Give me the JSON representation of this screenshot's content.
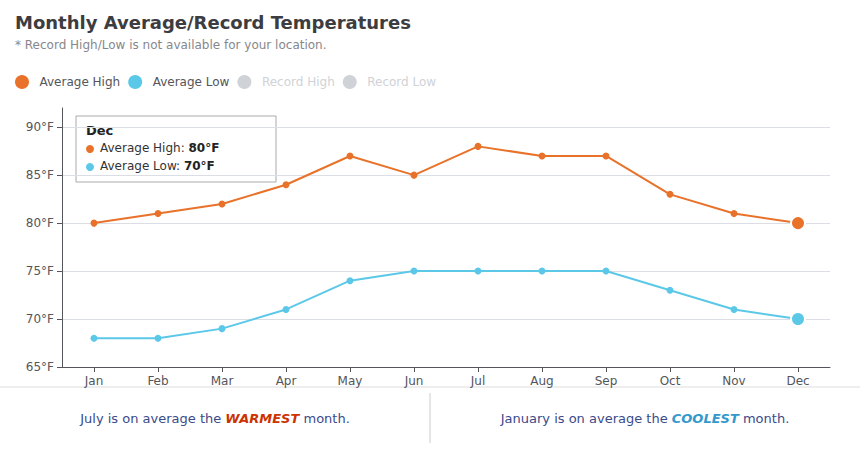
{
  "chart_data": {
    "type": "line",
    "title": "Monthly Average/Record Temperatures",
    "subtitle": "* Record High/Low is not available for your location.",
    "categories": [
      "Jan",
      "Feb",
      "Mar",
      "Apr",
      "May",
      "Jun",
      "Jul",
      "Aug",
      "Sep",
      "Oct",
      "Nov",
      "Dec"
    ],
    "series": [
      {
        "name": "Average High",
        "color": "#E8722A",
        "marker": "circle",
        "values": [
          80,
          81,
          82,
          84,
          87,
          85,
          88,
          87,
          87,
          83,
          81,
          80
        ]
      },
      {
        "name": "Average Low",
        "color": "#5BC8E8",
        "marker": "circle",
        "values": [
          68,
          68,
          69,
          71,
          74,
          75,
          75,
          75,
          75,
          73,
          71,
          70
        ]
      },
      {
        "name": "Record High",
        "color": "#BBBBBB",
        "values": [
          null,
          null,
          null,
          null,
          null,
          null,
          null,
          null,
          null,
          null,
          null,
          null
        ]
      },
      {
        "name": "Record Low",
        "color": "#BBBBBB",
        "values": [
          null,
          null,
          null,
          null,
          null,
          null,
          null,
          null,
          null,
          null,
          null,
          null
        ]
      }
    ],
    "ylim": [
      65,
      92
    ],
    "yticks": [
      {
        "value": 65,
        "label": "65°F"
      },
      {
        "value": 70,
        "label": "70°F"
      },
      {
        "value": 75,
        "label": "75°F"
      },
      {
        "value": 80,
        "label": "80°F"
      },
      {
        "value": 85,
        "label": "85°F"
      },
      {
        "value": 90,
        "label": "90°F"
      }
    ],
    "grid": true,
    "legend": "top left",
    "annotations": [
      {
        "category": "Dec",
        "text": [
          "Dec",
          "Average High: 80°F",
          "Average Low: 70°F"
        ]
      },
      {
        "text": [
          "July is on average the WARMEST month."
        ],
        "color": "#CC3300"
      },
      {
        "text": [
          "January is on average the COOLEST month."
        ],
        "color": "#3399CC"
      }
    ]
  }
}
